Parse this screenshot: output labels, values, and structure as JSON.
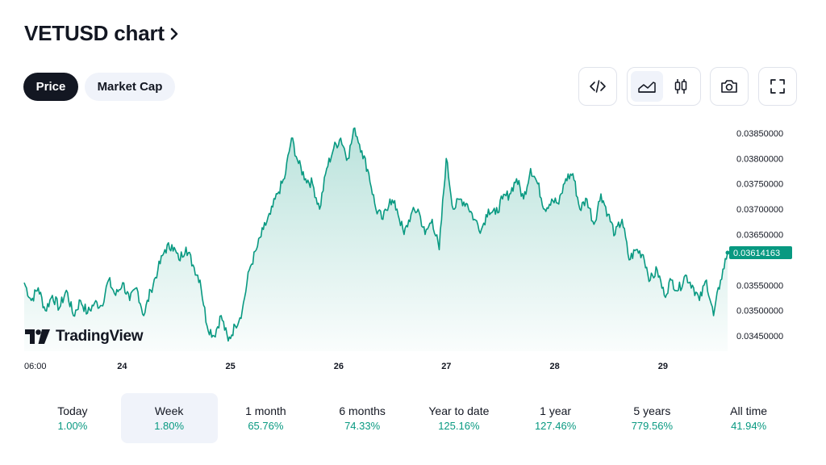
{
  "header": {
    "title": "VETUSD chart"
  },
  "tabs": {
    "price": "Price",
    "market_cap": "Market Cap"
  },
  "toolbar": {
    "icons": [
      "embed-code-icon",
      "area-chart-icon",
      "candlestick-icon",
      "camera-icon",
      "fullscreen-icon"
    ]
  },
  "watermark": {
    "text": "TradingView"
  },
  "colors": {
    "line": "#089981",
    "accent": "#089981",
    "text": "#131722",
    "border": "#e0e3eb",
    "chip": "#f0f3fa"
  },
  "chart_data": {
    "type": "area",
    "title": "VETUSD chart",
    "symbol": "VETUSD",
    "ylim": [
      0.0342,
      0.0388
    ],
    "y_ticks": [
      0.0385,
      0.038,
      0.0375,
      0.037,
      0.0365,
      0.0355,
      0.035,
      0.0345
    ],
    "y_tick_labels": [
      "0.03850000",
      "0.03800000",
      "0.03750000",
      "0.03700000",
      "0.03650000",
      "0.03550000",
      "0.03500000",
      "0.03450000"
    ],
    "x_tick_labels": [
      "06:00",
      "24",
      "25",
      "26",
      "27",
      "28",
      "29"
    ],
    "x_tick_positions": [
      0,
      0.139,
      0.293,
      0.447,
      0.6,
      0.754,
      0.908
    ],
    "last_value": 0.03614163,
    "last_value_label": "0.03614163",
    "series": [
      {
        "name": "VETUSD",
        "x": [
          0,
          0.01,
          0.02,
          0.03,
          0.04,
          0.05,
          0.06,
          0.07,
          0.08,
          0.09,
          0.1,
          0.11,
          0.12,
          0.13,
          0.14,
          0.15,
          0.16,
          0.17,
          0.18,
          0.19,
          0.2,
          0.21,
          0.22,
          0.23,
          0.24,
          0.25,
          0.26,
          0.27,
          0.28,
          0.29,
          0.3,
          0.31,
          0.32,
          0.33,
          0.34,
          0.35,
          0.36,
          0.37,
          0.38,
          0.39,
          0.4,
          0.41,
          0.42,
          0.43,
          0.44,
          0.45,
          0.46,
          0.47,
          0.48,
          0.49,
          0.5,
          0.51,
          0.52,
          0.53,
          0.54,
          0.55,
          0.56,
          0.57,
          0.58,
          0.59,
          0.6,
          0.61,
          0.62,
          0.63,
          0.64,
          0.65,
          0.66,
          0.67,
          0.68,
          0.69,
          0.7,
          0.71,
          0.72,
          0.73,
          0.74,
          0.75,
          0.76,
          0.77,
          0.78,
          0.79,
          0.8,
          0.81,
          0.82,
          0.83,
          0.84,
          0.85,
          0.86,
          0.87,
          0.88,
          0.89,
          0.9,
          0.91,
          0.92,
          0.93,
          0.94,
          0.95,
          0.96,
          0.97,
          0.98,
          0.99,
          1.0
        ],
        "values": [
          0.03555,
          0.0352,
          0.03545,
          0.035,
          0.0353,
          0.03505,
          0.0354,
          0.0349,
          0.0352,
          0.03495,
          0.03515,
          0.0351,
          0.0356,
          0.0353,
          0.03555,
          0.0352,
          0.03545,
          0.0349,
          0.0354,
          0.0358,
          0.0362,
          0.0363,
          0.036,
          0.03625,
          0.0359,
          0.0356,
          0.0347,
          0.0345,
          0.0349,
          0.0344,
          0.0347,
          0.035,
          0.0358,
          0.0362,
          0.0366,
          0.0369,
          0.0373,
          0.0376,
          0.0384,
          0.0379,
          0.0376,
          0.0375,
          0.037,
          0.0378,
          0.0382,
          0.0384,
          0.038,
          0.0386,
          0.03815,
          0.0377,
          0.037,
          0.0368,
          0.0372,
          0.037,
          0.0365,
          0.0369,
          0.037,
          0.0365,
          0.0368,
          0.0362,
          0.038,
          0.037,
          0.0372,
          0.0371,
          0.0368,
          0.0366,
          0.037,
          0.0369,
          0.0372,
          0.0373,
          0.0376,
          0.0372,
          0.0378,
          0.0375,
          0.037,
          0.0372,
          0.0371,
          0.0376,
          0.0377,
          0.037,
          0.0372,
          0.0367,
          0.0373,
          0.0369,
          0.0365,
          0.0368,
          0.036,
          0.0362,
          0.0361,
          0.0356,
          0.0358,
          0.0353,
          0.0356,
          0.0354,
          0.0357,
          0.0355,
          0.0352,
          0.0356,
          0.0349,
          0.0356,
          0.03614163
        ]
      }
    ]
  },
  "periods": [
    {
      "label": "Today",
      "change": "1.00%",
      "active": false
    },
    {
      "label": "Week",
      "change": "1.80%",
      "active": true
    },
    {
      "label": "1 month",
      "change": "65.76%",
      "active": false
    },
    {
      "label": "6 months",
      "change": "74.33%",
      "active": false
    },
    {
      "label": "Year to date",
      "change": "125.16%",
      "active": false
    },
    {
      "label": "1 year",
      "change": "127.46%",
      "active": false
    },
    {
      "label": "5 years",
      "change": "779.56%",
      "active": false
    },
    {
      "label": "All time",
      "change": "41.94%",
      "active": false
    }
  ]
}
